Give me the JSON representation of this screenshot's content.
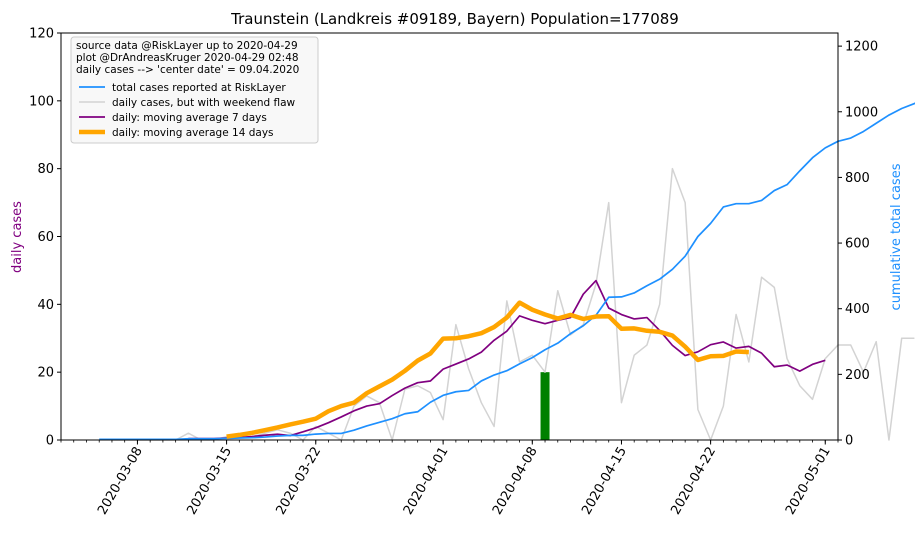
{
  "chart_data": {
    "type": "line",
    "title": "Traunstein (Landkreis #09189, Bayern) Population=177089",
    "ylabel_left": "daily cases",
    "ylabel_right": "cumulative total cases",
    "xlabel": "",
    "ylim_left": [
      0,
      120
    ],
    "ylim_right": [
      0,
      1240
    ],
    "yticks_left": [
      0,
      20,
      40,
      60,
      80,
      100,
      120
    ],
    "yticks_right": [
      0,
      200,
      400,
      600,
      800,
      1000,
      1200
    ],
    "xlim": [
      "2020-03-02",
      "2020-05-02"
    ],
    "xtick_labels": [
      "2020-03-08",
      "2020-03-15",
      "2020-03-22",
      "2020-04-01",
      "2020-04-08",
      "2020-04-15",
      "2020-04-22",
      "2020-05-01"
    ],
    "grid": false,
    "legend_position": "top-left",
    "legend_header": [
      "source data @RiskLayer up to 2020-04-29",
      "plot @DrAndreasKruger 2020-04-29 02:48",
      "daily cases --> 'center date' = 09.04.2020"
    ],
    "colors": {
      "total": "#1e90ff",
      "daily": "#d3d3d3",
      "ma7": "#800080",
      "ma14": "#ffa500",
      "center_bar": "#008000",
      "ylabel_left": "#800080",
      "ylabel_right": "#1e90ff"
    },
    "center_bar": {
      "date": "2020-04-09",
      "value": 20
    },
    "series": [
      {
        "name": "total cases reported at RiskLayer",
        "key": "total",
        "axis": "right",
        "start_date": "2020-03-05",
        "values": [
          2,
          2,
          2,
          2,
          2,
          2,
          2,
          4,
          4,
          4,
          5,
          6,
          7,
          9,
          12,
          14,
          14,
          18,
          20,
          20,
          30,
          43,
          54,
          65,
          80,
          86,
          115,
          136,
          147,
          151,
          180,
          198,
          211,
          232,
          251,
          275,
          295,
          324,
          348,
          380,
          435,
          436,
          448,
          470,
          490,
          520,
          560,
          620,
          660,
          710,
          720,
          720,
          730,
          760,
          778,
          820,
          860,
          890,
          910,
          920,
          940,
          965,
          990,
          1010,
          1025,
          1050,
          1050,
          1080,
          1100,
          1125
        ]
      },
      {
        "name": "daily cases, but with weekend flaw",
        "key": "daily",
        "axis": "left",
        "start_date": "2020-03-06",
        "values": [
          0,
          0,
          0,
          0,
          0,
          0,
          2,
          0,
          0,
          1,
          1,
          1,
          2,
          3,
          2,
          0,
          4,
          2,
          0,
          10,
          13,
          11,
          0,
          15,
          16,
          14,
          6,
          34,
          21,
          11,
          4,
          41,
          23,
          25,
          20,
          44,
          31,
          34,
          46,
          70,
          11,
          25,
          28,
          40,
          80,
          70,
          9,
          0,
          10,
          37,
          23,
          48,
          45,
          24,
          16,
          12,
          24,
          28,
          28,
          20,
          29,
          0,
          30,
          30
        ]
      },
      {
        "name": "daily: moving average 7 days",
        "key": "ma7",
        "axis": "left",
        "start_date": "2020-03-12",
        "values": [
          0.4,
          0.4,
          0.4,
          0.6,
          0.7,
          1.0,
          1.4,
          1.7,
          1.3,
          2.4,
          3.6,
          5.1,
          6.8,
          8.6,
          10.0,
          10.7,
          13.1,
          15.3,
          16.9,
          17.4,
          20.9,
          22.4,
          23.9,
          25.9,
          29.4,
          32.1,
          36.6,
          35.3,
          34.3,
          35.3,
          36.1,
          43.0,
          47.0,
          38.9,
          37.0,
          35.7,
          36.1,
          32.3,
          27.9,
          24.9,
          26.0,
          28.1,
          28.9,
          27.1,
          27.6,
          25.6,
          21.6,
          22.1,
          20.3,
          22.3,
          23.5
        ]
      },
      {
        "name": "daily: moving average 14 days",
        "key": "ma14",
        "axis": "left",
        "start_date": "2020-03-15",
        "values": [
          1.0,
          1.5,
          2.1,
          2.9,
          3.7,
          4.6,
          5.4,
          6.3,
          8.5,
          10.0,
          11.0,
          13.8,
          15.8,
          17.8,
          20.4,
          23.4,
          25.5,
          29.9,
          30.0,
          30.6,
          31.5,
          33.3,
          36.1,
          40.5,
          38.4,
          37.0,
          35.8,
          36.9,
          35.7,
          36.4,
          36.5,
          32.8,
          32.9,
          32.2,
          31.9,
          30.8,
          27.5,
          23.6,
          24.7,
          24.8,
          26.1,
          25.9
        ]
      }
    ]
  }
}
